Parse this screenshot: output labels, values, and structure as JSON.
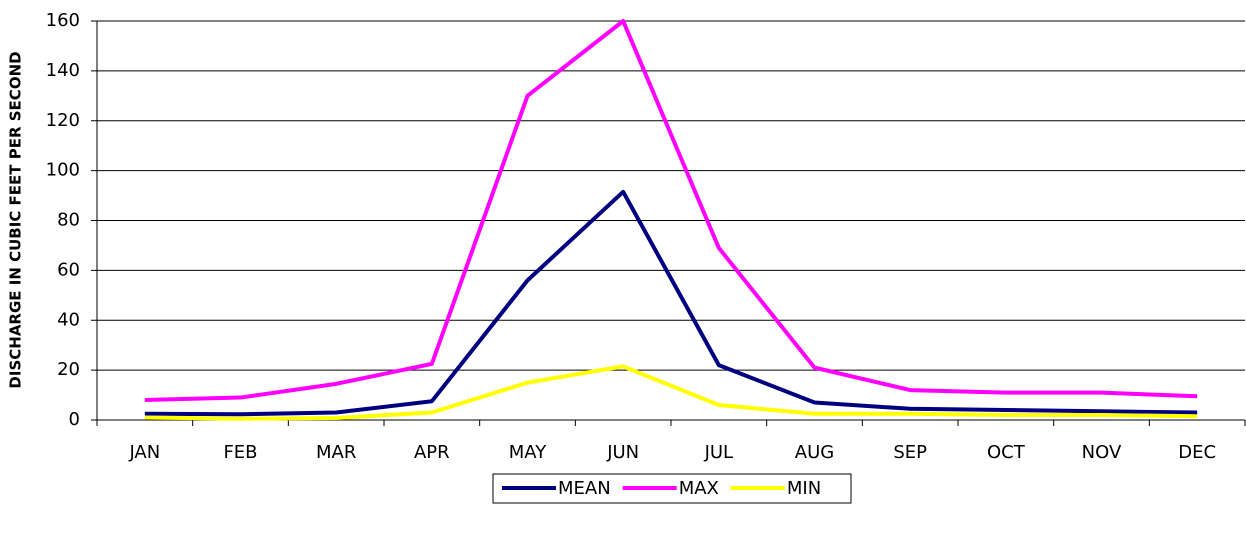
{
  "chart_data": {
    "type": "line",
    "y_label": "DISCHARGE IN CUBIC FEET PER SECOND",
    "categories": [
      "JAN",
      "FEB",
      "MAR",
      "APR",
      "MAY",
      "JUN",
      "JUL",
      "AUG",
      "SEP",
      "OCT",
      "NOV",
      "DEC"
    ],
    "series": [
      {
        "name": "MEAN",
        "color": "#000080",
        "values": [
          2.5,
          2.3,
          3,
          7.5,
          56,
          91.5,
          22,
          7,
          4.5,
          4,
          3.5,
          3
        ]
      },
      {
        "name": "MAX",
        "color": "#ff00ff",
        "values": [
          8,
          9,
          14.5,
          22.5,
          130,
          160,
          69,
          21,
          12,
          11,
          11,
          9.5
        ]
      },
      {
        "name": "MIN",
        "color": "#ffff00",
        "values": [
          1,
          0.5,
          0.8,
          3,
          15,
          21.5,
          6,
          2.5,
          2.5,
          2,
          2,
          1.5
        ]
      }
    ],
    "ylim": [
      0,
      160
    ],
    "yticks": [
      0,
      20,
      40,
      60,
      80,
      100,
      120,
      140,
      160
    ],
    "grid": true,
    "legend": "bottom"
  }
}
